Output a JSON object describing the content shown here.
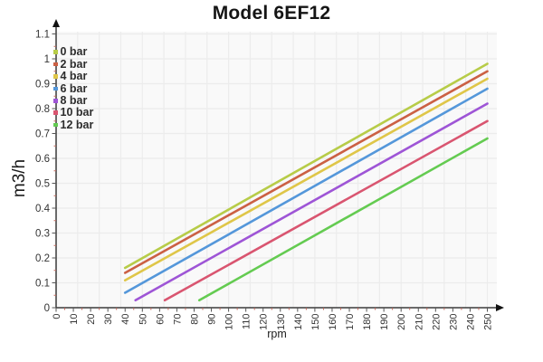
{
  "chart_data": {
    "type": "line",
    "title": "Model 6EF12",
    "xlabel": "rpm",
    "ylabel": "m3/h",
    "xlim": [
      0,
      250
    ],
    "ylim": [
      0,
      1.1
    ],
    "grid": true,
    "legend_position": "top-left",
    "x_ticks": [
      0,
      10,
      20,
      30,
      40,
      50,
      60,
      70,
      80,
      90,
      100,
      110,
      120,
      130,
      140,
      150,
      160,
      170,
      180,
      190,
      200,
      210,
      220,
      230,
      240,
      250
    ],
    "y_ticks": [
      "0",
      "0.1",
      "0.2",
      "0.3",
      "0.4",
      "0.5",
      "0.6",
      "0.7",
      "0.8",
      "0.9",
      "1",
      "1.1"
    ],
    "series": [
      {
        "name": "0 bar",
        "color": "#b7cc48",
        "points": [
          [
            40,
            0.16
          ],
          [
            250,
            0.98
          ]
        ]
      },
      {
        "name": "2 bar",
        "color": "#cb6044",
        "points": [
          [
            40,
            0.14
          ],
          [
            250,
            0.95
          ]
        ]
      },
      {
        "name": "4 bar",
        "color": "#dfc648",
        "points": [
          [
            40,
            0.11
          ],
          [
            250,
            0.92
          ]
        ]
      },
      {
        "name": "6 bar",
        "color": "#5497da",
        "points": [
          [
            40,
            0.06
          ],
          [
            250,
            0.88
          ]
        ]
      },
      {
        "name": "8 bar",
        "color": "#9e55d6",
        "points": [
          [
            46,
            0.03
          ],
          [
            250,
            0.82
          ]
        ]
      },
      {
        "name": "10 bar",
        "color": "#d95570",
        "points": [
          [
            63,
            0.03
          ],
          [
            250,
            0.75
          ]
        ]
      },
      {
        "name": "12 bar",
        "color": "#64cb51",
        "points": [
          [
            83,
            0.03
          ],
          [
            250,
            0.68
          ]
        ]
      }
    ],
    "axis_color": "#3a3a3a",
    "arrow_color": "#111111",
    "grid_color": "#ececec",
    "plot_bg": "#f9f9f9",
    "major_tick_color": "#555555",
    "minor_tick_color": "#c0685c",
    "text_color": "#333333"
  }
}
